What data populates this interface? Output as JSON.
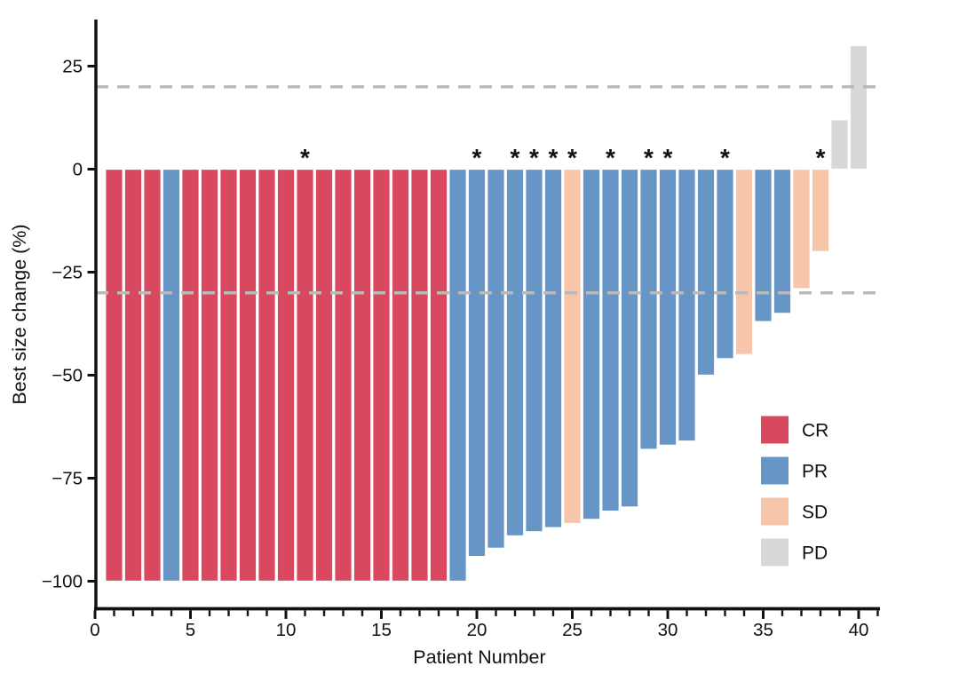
{
  "figure": {
    "background": "#ffffff"
  },
  "chart_data": {
    "type": "bar",
    "variant": "waterfall",
    "title": "",
    "xlabel": "Patient Number",
    "ylabel": "Best size change (%)",
    "x": [
      1,
      2,
      3,
      4,
      5,
      6,
      7,
      8,
      9,
      10,
      11,
      12,
      13,
      14,
      15,
      16,
      17,
      18,
      19,
      20,
      21,
      22,
      23,
      24,
      25,
      26,
      27,
      28,
      29,
      30,
      31,
      32,
      33,
      34,
      35,
      36,
      37,
      38,
      39,
      40
    ],
    "values": [
      -100,
      -100,
      -100,
      -100,
      -100,
      -100,
      -100,
      -100,
      -100,
      -100,
      -100,
      -100,
      -100,
      -100,
      -100,
      -100,
      -100,
      -100,
      -100,
      -94,
      -92,
      -89,
      -88,
      -87,
      -86,
      -85,
      -83,
      -82,
      -68,
      -67,
      -66,
      -50,
      -46,
      -45,
      -37,
      -35,
      -29,
      -20,
      12,
      30
    ],
    "response": [
      "CR",
      "CR",
      "CR",
      "PR",
      "CR",
      "CR",
      "CR",
      "CR",
      "CR",
      "CR",
      "CR",
      "CR",
      "CR",
      "CR",
      "CR",
      "CR",
      "CR",
      "CR",
      "PR",
      "PR",
      "PR",
      "PR",
      "PR",
      "PR",
      "SD",
      "PR",
      "PR",
      "PR",
      "PR",
      "PR",
      "PR",
      "PR",
      "PR",
      "SD",
      "PR",
      "PR",
      "SD",
      "SD",
      "PD",
      "PD"
    ],
    "starred_patients": [
      11,
      20,
      22,
      23,
      24,
      25,
      27,
      29,
      30,
      33,
      38
    ],
    "star_symbol": "*",
    "reference_lines_y": [
      20,
      -30
    ],
    "reference_line_color": "#BABABA",
    "x_tick_major_values": [
      0,
      5,
      10,
      15,
      20,
      25,
      30,
      35,
      40
    ],
    "x_tick_major_labels": [
      "0",
      "5",
      "10",
      "15",
      "20",
      "25",
      "30",
      "35",
      "40"
    ],
    "x_tick_minor_from": 0,
    "x_tick_minor_to": 41,
    "x_range": [
      0,
      41
    ],
    "y_tick_values": [
      25,
      0,
      -25,
      -50,
      -75,
      -100
    ],
    "y_tick_labels": [
      "25",
      "0",
      "−25",
      "−50",
      "−75",
      "−100"
    ],
    "y_range": [
      -108,
      36
    ],
    "grid": "off",
    "legend_position": "right-inside",
    "legend": [
      {
        "label": "CR",
        "color": "#D8495F"
      },
      {
        "label": "PR",
        "color": "#6695C6"
      },
      {
        "label": "SD",
        "color": "#F7C5A9"
      },
      {
        "label": "PD",
        "color": "#D8D8D8"
      }
    ],
    "colors": {
      "CR": "#D8495F",
      "PR": "#6695C6",
      "SD": "#F7C5A9",
      "PD": "#D8D8D8"
    },
    "axis_color": "#111111",
    "bar_outline_color": "#ffffff"
  }
}
